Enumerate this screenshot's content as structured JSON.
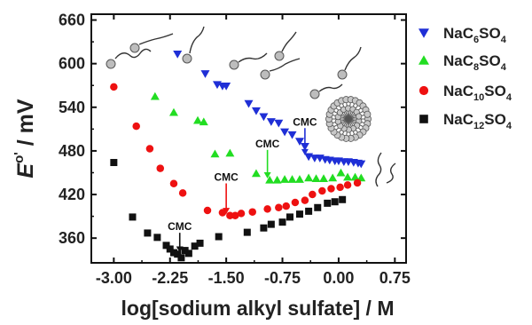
{
  "chart_data": {
    "type": "scatter",
    "xlabel": "log[sodium alkyl sulfate] / M",
    "ylabel_main": "E",
    "ylabel_super": "o'",
    "ylabel_rest": " / mV",
    "xlim": [
      -3.3,
      0.9
    ],
    "ylim": [
      326,
      668
    ],
    "xticks": [
      -3.0,
      -2.25,
      -1.5,
      -0.75,
      0.0,
      0.75
    ],
    "xtick_labels": [
      "-3.00",
      "-2.25",
      "-1.50",
      "-0.75",
      "0.00",
      "0.75"
    ],
    "yticks": [
      360,
      420,
      480,
      540,
      600,
      660
    ],
    "ytick_labels": [
      "360",
      "420",
      "480",
      "540",
      "600",
      "660"
    ],
    "legend_position": "top-right",
    "series": [
      {
        "name_main": "NaC",
        "name_sub1": "6",
        "name_mid": "SO",
        "name_sub2": "4",
        "marker": "triangle-down",
        "color": "#1f2fd6",
        "x": [
          -2.15,
          -1.78,
          -1.62,
          -1.55,
          -1.5,
          -1.2,
          -1.1,
          -1.0,
          -0.9,
          -0.8,
          -0.72,
          -0.62,
          -0.52,
          -0.45,
          -0.4,
          -0.32,
          -0.25,
          -0.18,
          -0.12,
          -0.05,
          0.0,
          0.07,
          0.13,
          0.2,
          0.26,
          0.3
        ],
        "y": [
          613,
          586,
          571,
          569,
          569,
          545,
          535,
          527,
          520,
          518,
          506,
          502,
          493,
          486,
          472,
          470,
          470,
          468,
          467,
          466,
          466,
          465,
          465,
          464,
          463,
          462
        ]
      },
      {
        "name_main": "NaC",
        "name_sub1": "8",
        "name_mid": "SO",
        "name_sub2": "4",
        "marker": "triangle-up",
        "color": "#22dd22",
        "x": [
          -2.45,
          -2.2,
          -1.88,
          -1.8,
          -1.65,
          -1.45,
          -1.1,
          -0.92,
          -0.82,
          -0.72,
          -0.62,
          -0.52,
          -0.4,
          -0.3,
          -0.2,
          -0.08,
          0.03,
          0.12,
          0.22,
          0.3
        ],
        "y": [
          555,
          533,
          522,
          520,
          476,
          477,
          449,
          440,
          440,
          441,
          441,
          441,
          443,
          442,
          442,
          443,
          450,
          444,
          444,
          443
        ]
      },
      {
        "name_main": "NaC",
        "name_sub1": "10",
        "name_mid": "SO",
        "name_sub2": "4",
        "marker": "circle",
        "color": "#ee1111",
        "x": [
          -3.0,
          -2.7,
          -2.52,
          -2.38,
          -2.2,
          -2.08,
          -1.75,
          -1.55,
          -1.45,
          -1.38,
          -1.3,
          -1.15,
          -0.95,
          -0.8,
          -0.7,
          -0.58,
          -0.45,
          -0.35,
          -0.22,
          -0.1,
          0.02,
          0.12,
          0.25
        ],
        "y": [
          568,
          514,
          483,
          456,
          435,
          422,
          398,
          395,
          391,
          391,
          394,
          396,
          400,
          402,
          404,
          409,
          412,
          420,
          425,
          428,
          430,
          433,
          436
        ]
      },
      {
        "name_main": "NaC",
        "name_sub1": "12",
        "name_mid": "SO",
        "name_sub2": "4",
        "marker": "square",
        "color": "#111111",
        "x": [
          -3.0,
          -2.75,
          -2.55,
          -2.42,
          -2.3,
          -2.25,
          -2.2,
          -2.15,
          -2.1,
          -2.05,
          -2.0,
          -1.92,
          -1.85,
          -1.6,
          -1.22,
          -1.0,
          -0.9,
          -0.75,
          -0.65,
          -0.52,
          -0.4,
          -0.28,
          -0.15,
          -0.05,
          0.05
        ],
        "y": [
          464,
          389,
          367,
          361,
          350,
          345,
          340,
          338,
          333,
          343,
          339,
          349,
          353,
          362,
          368,
          374,
          379,
          382,
          389,
          393,
          397,
          402,
          408,
          410,
          413
        ]
      }
    ],
    "annotations": [
      {
        "text": "CMC",
        "series": 3,
        "x": -2.12,
        "text_y": 371,
        "arrow_to": 340
      },
      {
        "text": "CMC",
        "series": 2,
        "x": -1.5,
        "text_y": 439,
        "arrow_to": 393
      },
      {
        "text": "CMC",
        "series": 1,
        "x": -0.95,
        "text_y": 485,
        "arrow_to": 442
      },
      {
        "text": "CMC",
        "series": 0,
        "x": -0.45,
        "text_y": 515,
        "arrow_to": 474
      }
    ]
  }
}
